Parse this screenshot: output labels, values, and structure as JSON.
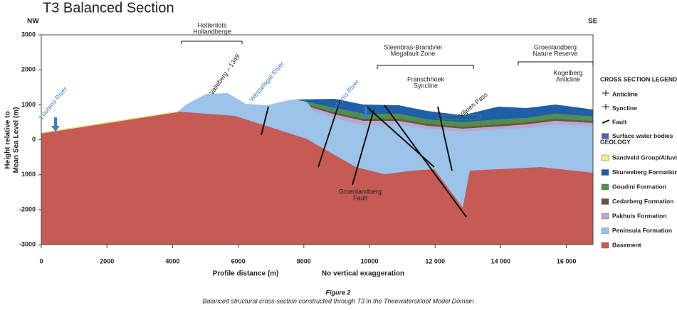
{
  "header": {
    "title": "T3 Balanced Section",
    "left": "NW",
    "right": "SE"
  },
  "y_axis": {
    "title_lines": [
      "Height relative to",
      "Mean Sea Level (m)"
    ],
    "ticks": [
      "3000",
      "2000",
      "1000",
      "0",
      "1000",
      "-2000",
      "-3000"
    ]
  },
  "x_axis": {
    "title": "Profile distance (m)",
    "note": "No vertical exaggeration",
    "ticks": [
      "0",
      "2000",
      "4000",
      "6000",
      "8000",
      "10000",
      "12 000",
      "14 000",
      "16 000"
    ]
  },
  "annotations": {
    "range_1": [
      "Hottentots",
      "Hollandberge"
    ],
    "range_2": [
      "Steenbras-Brandvlei",
      "Megafault Zone"
    ],
    "range_3": [
      "Groenlandberg",
      "Nature Reserve"
    ],
    "syncline": [
      "Franschhoek",
      "Syncline"
    ],
    "anticline": [
      "Kogelberg",
      "Anticline"
    ],
    "peak": "Valleberg – 1349",
    "river_1": "Lourens River",
    "river_2": "Wesselsgat River",
    "river_3": "Kalrams River",
    "pass": "Viljoen Pass",
    "fault": [
      "Groenlandberg",
      "Fault"
    ]
  },
  "legend": {
    "title": "CROSS SECTION LEGEND",
    "items": [
      "Anticline",
      "Syncline",
      "Fault",
      "Surface water bodies"
    ],
    "geology_title": "GEOLOGY",
    "geology": [
      "Sandveld Group/Alluvium",
      "Skurweberg Formation",
      "Goudini Formation",
      "Cedarberg Formation",
      "Pakhuis Formation",
      "Peninsula Formation",
      "Basement"
    ]
  },
  "caption": {
    "figure": "Figure 2",
    "text": "Balanced structural cross-section constructed through T3 in the Theewaterskloof Model Domain"
  }
}
